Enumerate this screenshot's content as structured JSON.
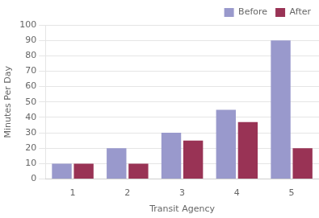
{
  "chart_data": {
    "type": "bar",
    "categories": [
      "1",
      "2",
      "3",
      "4",
      "5"
    ],
    "series": [
      {
        "name": "Before",
        "color": "#9999cc",
        "values": [
          10,
          20,
          30,
          45,
          90
        ]
      },
      {
        "name": "After",
        "color": "#993355",
        "values": [
          10,
          10,
          25,
          37,
          20
        ]
      }
    ],
    "xlabel": "Transit Agency",
    "ylabel": "Minutes Per Day",
    "ylim": [
      0,
      100
    ],
    "yticks": [
      0,
      10,
      20,
      30,
      40,
      50,
      60,
      70,
      80,
      90,
      100
    ],
    "grid": true,
    "legend": "upper right"
  }
}
